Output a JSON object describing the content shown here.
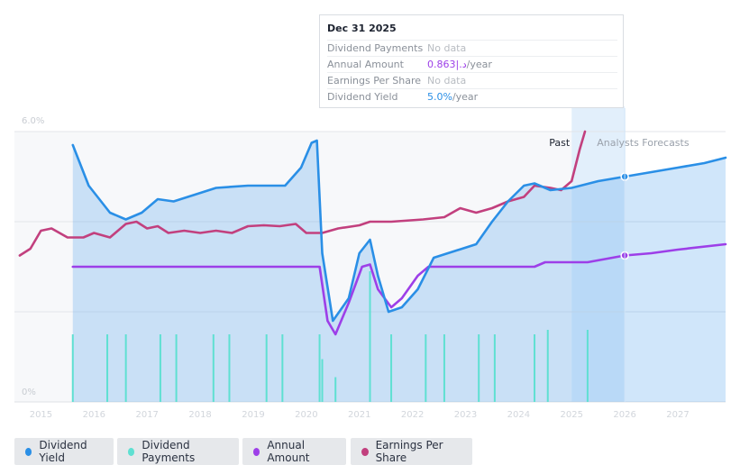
{
  "tooltip": {
    "date": "Dec 31 2025",
    "rows": [
      {
        "label": "Dividend Payments",
        "value": "No data",
        "color": "#b8bcc2"
      },
      {
        "label": "Annual Amount",
        "value": "0.863|.د",
        "suffix": "/year",
        "color": "#9d3fe8"
      },
      {
        "label": "Earnings Per Share",
        "value": "No data",
        "color": "#b8bcc2"
      },
      {
        "label": "Dividend Yield",
        "value": "5.0%",
        "suffix": "/year",
        "color": "#2a8fe6"
      }
    ]
  },
  "past_label": "Past",
  "forecast_label": "Analysts Forecasts",
  "legend": [
    {
      "label": "Dividend Yield",
      "color": "#2a8fe6"
    },
    {
      "label": "Dividend Payments",
      "color": "#5fe0d2"
    },
    {
      "label": "Annual Amount",
      "color": "#9d3fe8"
    },
    {
      "label": "Earnings Per Share",
      "color": "#c2407e"
    }
  ],
  "chart_data": {
    "type": "line",
    "title": "",
    "xlabel": "",
    "ylabel": "",
    "y_tick_labels": [
      "6.0%",
      "0%"
    ],
    "ylim": [
      0,
      6.0
    ],
    "xlim": [
      2014.5,
      2027.9
    ],
    "x_tick_labels": [
      "2015",
      "2016",
      "2017",
      "2018",
      "2019",
      "2020",
      "2021",
      "2022",
      "2023",
      "2024",
      "2025",
      "2026",
      "2027"
    ],
    "x_ticks": [
      2015,
      2016,
      2017,
      2018,
      2019,
      2020,
      2021,
      2022,
      2023,
      2024,
      2025,
      2026,
      2027
    ],
    "past_end": 2025.0,
    "forecast_start": 2026.0,
    "series": [
      {
        "name": "Dividend Yield",
        "unit": "%",
        "points": [
          [
            2015.6,
            5.7
          ],
          [
            2015.9,
            4.8
          ],
          [
            2016.3,
            4.2
          ],
          [
            2016.6,
            4.05
          ],
          [
            2016.9,
            4.2
          ],
          [
            2017.2,
            4.5
          ],
          [
            2017.5,
            4.45
          ],
          [
            2017.9,
            4.6
          ],
          [
            2018.3,
            4.75
          ],
          [
            2018.9,
            4.8
          ],
          [
            2019.6,
            4.8
          ],
          [
            2019.9,
            5.2
          ],
          [
            2020.1,
            5.75
          ],
          [
            2020.2,
            5.8
          ],
          [
            2020.3,
            3.3
          ],
          [
            2020.5,
            1.8
          ],
          [
            2020.8,
            2.3
          ],
          [
            2021.0,
            3.3
          ],
          [
            2021.2,
            3.6
          ],
          [
            2021.35,
            2.8
          ],
          [
            2021.55,
            2.0
          ],
          [
            2021.8,
            2.1
          ],
          [
            2022.1,
            2.5
          ],
          [
            2022.4,
            3.2
          ],
          [
            2022.8,
            3.35
          ],
          [
            2023.2,
            3.5
          ],
          [
            2023.5,
            4.0
          ],
          [
            2023.8,
            4.45
          ],
          [
            2024.1,
            4.8
          ],
          [
            2024.3,
            4.85
          ],
          [
            2024.6,
            4.7
          ],
          [
            2025.0,
            4.75
          ],
          [
            2025.5,
            4.9
          ],
          [
            2026.0,
            5.0
          ],
          [
            2026.5,
            5.1
          ],
          [
            2027.0,
            5.2
          ],
          [
            2027.5,
            5.3
          ],
          [
            2027.9,
            5.42
          ]
        ]
      },
      {
        "name": "Annual Amount",
        "unit": "|.د",
        "points": [
          [
            2015.6,
            3.0
          ],
          [
            2020.25,
            3.0
          ],
          [
            2020.4,
            1.8
          ],
          [
            2020.55,
            1.5
          ],
          [
            2020.8,
            2.2
          ],
          [
            2021.05,
            3.0
          ],
          [
            2021.2,
            3.05
          ],
          [
            2021.35,
            2.5
          ],
          [
            2021.6,
            2.1
          ],
          [
            2021.8,
            2.3
          ],
          [
            2022.1,
            2.8
          ],
          [
            2022.3,
            3.0
          ],
          [
            2023.5,
            3.0
          ],
          [
            2024.3,
            3.0
          ],
          [
            2024.5,
            3.1
          ],
          [
            2025.3,
            3.1
          ],
          [
            2026.0,
            3.25
          ],
          [
            2026.5,
            3.3
          ],
          [
            2027.0,
            3.38
          ],
          [
            2027.9,
            3.5
          ]
        ]
      },
      {
        "name": "Earnings Per Share",
        "unit": "",
        "points": [
          [
            2014.6,
            3.25
          ],
          [
            2014.8,
            3.4
          ],
          [
            2015.0,
            3.8
          ],
          [
            2015.2,
            3.85
          ],
          [
            2015.5,
            3.65
          ],
          [
            2015.8,
            3.65
          ],
          [
            2016.0,
            3.75
          ],
          [
            2016.3,
            3.65
          ],
          [
            2016.6,
            3.95
          ],
          [
            2016.8,
            4.0
          ],
          [
            2017.0,
            3.85
          ],
          [
            2017.2,
            3.9
          ],
          [
            2017.4,
            3.75
          ],
          [
            2017.7,
            3.8
          ],
          [
            2018.0,
            3.75
          ],
          [
            2018.3,
            3.8
          ],
          [
            2018.6,
            3.75
          ],
          [
            2018.9,
            3.9
          ],
          [
            2019.2,
            3.92
          ],
          [
            2019.5,
            3.9
          ],
          [
            2019.8,
            3.95
          ],
          [
            2020.0,
            3.75
          ],
          [
            2020.3,
            3.75
          ],
          [
            2020.6,
            3.85
          ],
          [
            2021.0,
            3.92
          ],
          [
            2021.2,
            4.0
          ],
          [
            2021.6,
            4.0
          ],
          [
            2022.2,
            4.05
          ],
          [
            2022.6,
            4.1
          ],
          [
            2022.9,
            4.3
          ],
          [
            2023.2,
            4.2
          ],
          [
            2023.5,
            4.3
          ],
          [
            2023.8,
            4.45
          ],
          [
            2024.1,
            4.55
          ],
          [
            2024.3,
            4.8
          ],
          [
            2024.6,
            4.75
          ],
          [
            2024.8,
            4.7
          ],
          [
            2025.0,
            4.9
          ],
          [
            2025.15,
            5.6
          ],
          [
            2025.25,
            6.0
          ]
        ]
      }
    ],
    "dividend_payments": {
      "name": "Dividend Payments",
      "x": [
        2015.6,
        2016.25,
        2016.6,
        2017.25,
        2017.55,
        2018.25,
        2018.55,
        2019.25,
        2019.55,
        2020.25,
        2020.3,
        2020.55,
        2021.2,
        2021.6,
        2022.25,
        2022.6,
        2023.25,
        2023.55,
        2024.3,
        2024.55,
        2025.3
      ],
      "heights": [
        1.5,
        1.5,
        1.5,
        1.5,
        1.5,
        1.5,
        1.5,
        1.5,
        1.5,
        1.5,
        0.95,
        0.55,
        2.9,
        1.5,
        1.5,
        1.5,
        1.5,
        1.5,
        1.5,
        1.6,
        1.6
      ]
    }
  }
}
